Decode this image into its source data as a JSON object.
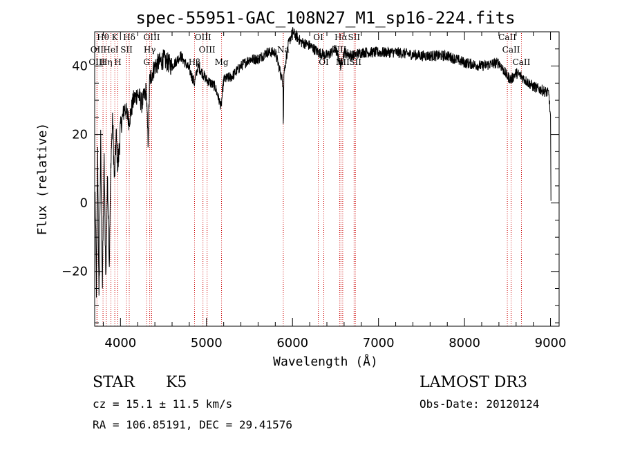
{
  "chart_data": {
    "type": "line",
    "title": "spec-55951-GAC_108N27_M1_sp16-224.fits",
    "xlabel": "Wavelength (Å)",
    "ylabel": "Flux (relative)",
    "xlim": [
      3700,
      9100
    ],
    "ylim": [
      -36,
      50
    ],
    "x_ticks": [
      4000,
      5000,
      6000,
      7000,
      8000,
      9000
    ],
    "y_ticks": [
      -20,
      0,
      20,
      40
    ],
    "x_minor_step": 200,
    "y_minor_step": 5,
    "colors": {
      "axes": "#000000",
      "series": "#000000",
      "lines": "#cc0000"
    },
    "spectrum_knots": [
      [
        3705,
        2
      ],
      [
        3720,
        -25
      ],
      [
        3735,
        14
      ],
      [
        3750,
        -30
      ],
      [
        3770,
        18
      ],
      [
        3790,
        -24
      ],
      [
        3810,
        12
      ],
      [
        3830,
        -22
      ],
      [
        3850,
        8
      ],
      [
        3870,
        -18
      ],
      [
        3890,
        14
      ],
      [
        3910,
        24
      ],
      [
        3930,
        6
      ],
      [
        3950,
        20
      ],
      [
        3970,
        10
      ],
      [
        4000,
        22
      ],
      [
        4050,
        28
      ],
      [
        4100,
        24
      ],
      [
        4150,
        30
      ],
      [
        4200,
        32
      ],
      [
        4250,
        29
      ],
      [
        4300,
        33
      ],
      [
        4320,
        18
      ],
      [
        4340,
        36
      ],
      [
        4400,
        40
      ],
      [
        4500,
        42
      ],
      [
        4600,
        40
      ],
      [
        4700,
        43
      ],
      [
        4800,
        39
      ],
      [
        4860,
        35
      ],
      [
        4900,
        40
      ],
      [
        5000,
        36
      ],
      [
        5100,
        34
      ],
      [
        5170,
        28
      ],
      [
        5200,
        36
      ],
      [
        5300,
        37
      ],
      [
        5400,
        40
      ],
      [
        5500,
        42
      ],
      [
        5600,
        42
      ],
      [
        5700,
        44
      ],
      [
        5800,
        44
      ],
      [
        5890,
        35
      ],
      [
        5893,
        22
      ],
      [
        5900,
        38
      ],
      [
        5950,
        46
      ],
      [
        6000,
        50
      ],
      [
        6100,
        47
      ],
      [
        6200,
        46
      ],
      [
        6300,
        44
      ],
      [
        6400,
        43
      ],
      [
        6500,
        45
      ],
      [
        6563,
        40
      ],
      [
        6600,
        44
      ],
      [
        6700,
        43
      ],
      [
        6800,
        44
      ],
      [
        7000,
        44
      ],
      [
        7200,
        44
      ],
      [
        7500,
        43
      ],
      [
        7800,
        43
      ],
      [
        8000,
        41
      ],
      [
        8200,
        40
      ],
      [
        8400,
        41
      ],
      [
        8498,
        37
      ],
      [
        8542,
        36
      ],
      [
        8600,
        38
      ],
      [
        8662,
        37
      ],
      [
        8700,
        36
      ],
      [
        8800,
        34
      ],
      [
        8900,
        33
      ],
      [
        8980,
        32
      ],
      [
        9000,
        25
      ],
      [
        9005,
        0
      ]
    ],
    "spectral_lines": [
      {
        "name": "Hθ",
        "wave": 3797,
        "row": 0
      },
      {
        "name": "OII",
        "wave": 3727,
        "row": 1
      },
      {
        "name": "OIII",
        "wave": 3727,
        "row": 2
      },
      {
        "name": "K",
        "wave": 3934,
        "row": 0
      },
      {
        "name": "HeI",
        "wave": 3889,
        "row": 1
      },
      {
        "name": "Hη",
        "wave": 3835,
        "row": 2
      },
      {
        "name": "H",
        "wave": 3969,
        "row": 2
      },
      {
        "name": "SII",
        "wave": 4070,
        "row": 1
      },
      {
        "name": "Hδ",
        "wave": 4102,
        "row": 0
      },
      {
        "name": "OIII",
        "wave": 4363,
        "row": 0
      },
      {
        "name": "Hγ",
        "wave": 4340,
        "row": 1
      },
      {
        "name": "G",
        "wave": 4304,
        "row": 2
      },
      {
        "name": "OIII",
        "wave": 4959,
        "row": 0
      },
      {
        "name": "OIII",
        "wave": 5007,
        "row": 1
      },
      {
        "name": "Hβ",
        "wave": 4861,
        "row": 2
      },
      {
        "name": "Mg",
        "wave": 5175,
        "row": 2
      },
      {
        "name": "Na",
        "wave": 5893,
        "row": 1
      },
      {
        "name": "OI",
        "wave": 6300,
        "row": 0
      },
      {
        "name": "OI",
        "wave": 6364,
        "row": 2
      },
      {
        "name": "Hα",
        "wave": 6563,
        "row": 0
      },
      {
        "name": "SII",
        "wave": 6716,
        "row": 0
      },
      {
        "name": "NII",
        "wave": 6548,
        "row": 1
      },
      {
        "name": "NII",
        "wave": 6584,
        "row": 2
      },
      {
        "name": "SII",
        "wave": 6731,
        "row": 2
      },
      {
        "name": "CaII",
        "wave": 8498,
        "row": 0
      },
      {
        "name": "CaII",
        "wave": 8542,
        "row": 1
      },
      {
        "name": "CaII",
        "wave": 8662,
        "row": 2
      }
    ]
  },
  "info": {
    "class_label": "STAR",
    "subclass": "K5",
    "survey": "LAMOST DR3",
    "cz": "cz = 15.1 ± 11.5 km/s",
    "obs_date": "Obs-Date: 20120124",
    "coords": "RA = 106.85191, DEC =  29.41576"
  }
}
